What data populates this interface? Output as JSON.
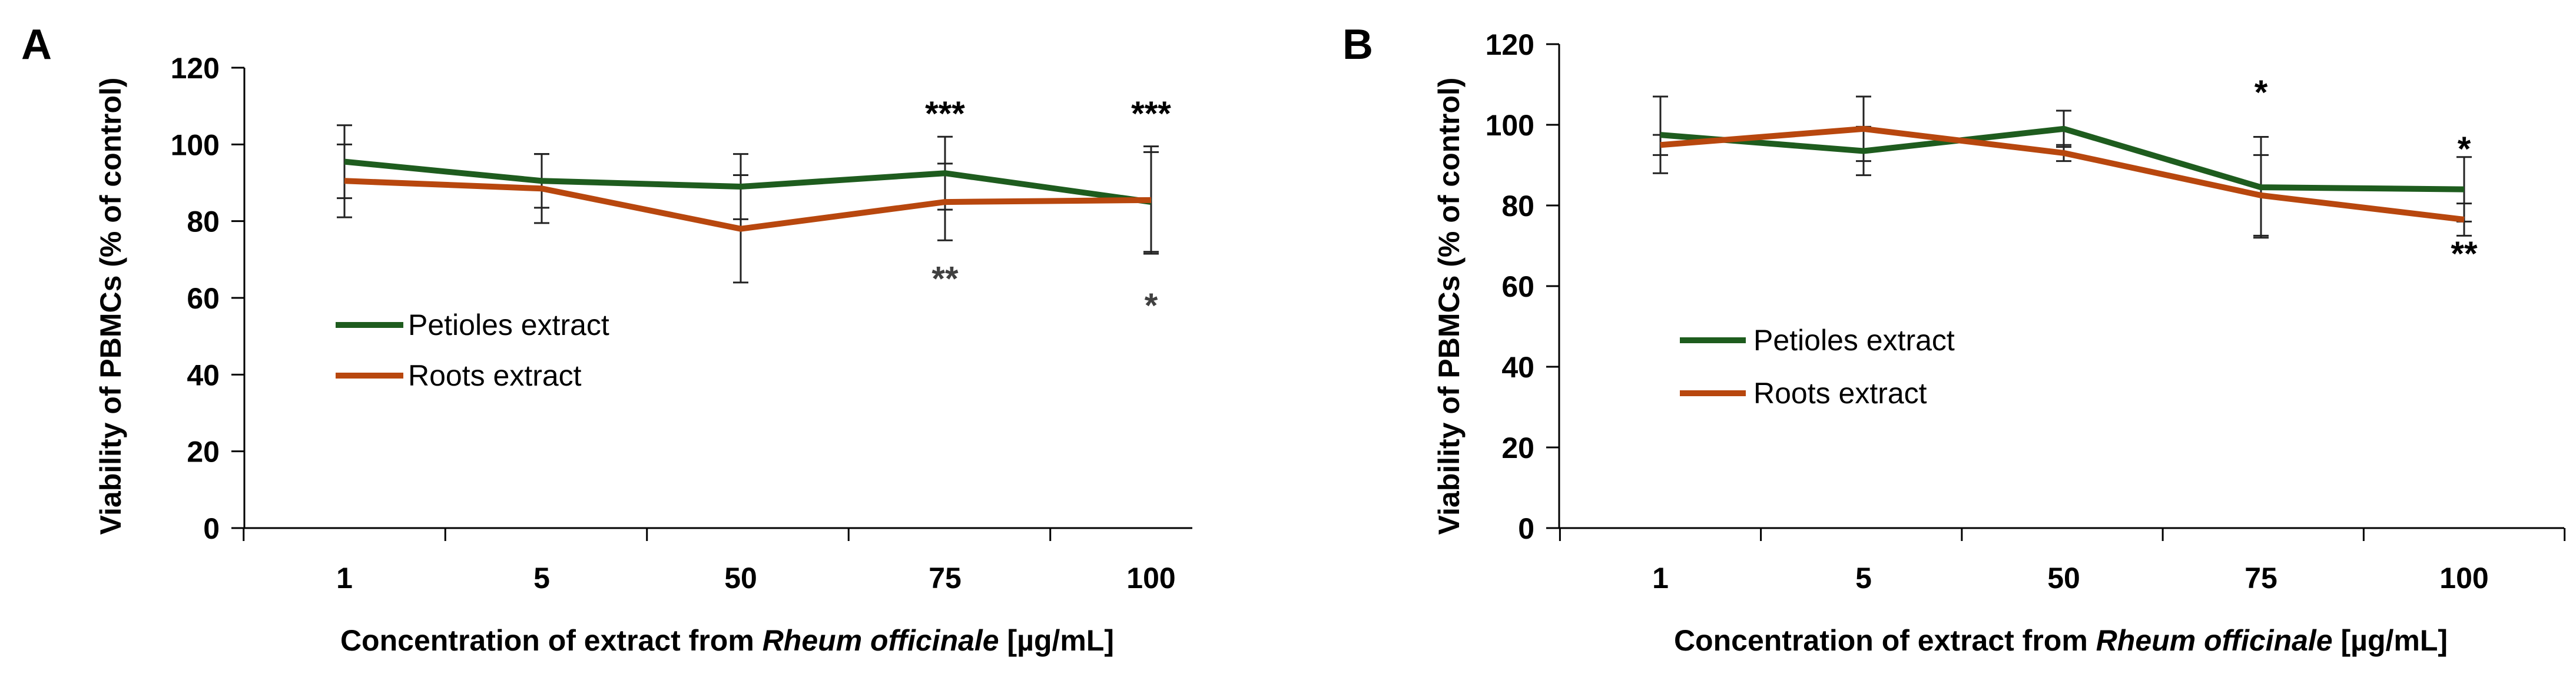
{
  "chart_data": [
    {
      "type": "line",
      "panel": "A",
      "categories": [
        "1",
        "5",
        "50",
        "75",
        "100"
      ],
      "series": [
        {
          "name": "Petioles extract",
          "color": "#1e5c1e",
          "values": [
            95.5,
            90.5,
            89,
            92.5,
            85
          ],
          "errors": [
            9.5,
            7,
            8.5,
            9.5,
            13
          ]
        },
        {
          "name": "Roots extract",
          "color": "#b8470e",
          "values": [
            90.5,
            88.5,
            78,
            85,
            85.5
          ],
          "errors": [
            9.5,
            9,
            14,
            10,
            14
          ]
        }
      ],
      "annotations": [
        {
          "text": "***",
          "category": "75",
          "value": 108,
          "color": "#000000"
        },
        {
          "text": "**",
          "category": "75",
          "value": 65,
          "color": "#404040"
        },
        {
          "text": "***",
          "category": "100",
          "value": 108,
          "color": "#000000"
        },
        {
          "text": "*",
          "category": "100",
          "value": 58,
          "color": "#404040"
        }
      ],
      "ylabel": "Viability of PBMCs (% of control)",
      "xlabel_parts": [
        "Concentration of extract from ",
        "Rheum officinale",
        " [µg/mL]"
      ],
      "ylim": [
        0,
        120
      ],
      "yticks": [
        "0",
        "20",
        "40",
        "60",
        "80",
        "100",
        "120"
      ],
      "legend_position": "middle-left"
    },
    {
      "type": "line",
      "panel": "B",
      "categories": [
        "1",
        "5",
        "50",
        "75",
        "100"
      ],
      "series": [
        {
          "name": "Petioles extract",
          "color": "#1e5c1e",
          "values": [
            97.5,
            93.5,
            99,
            84.5,
            84
          ],
          "errors": [
            9.5,
            6,
            4.5,
            12.5,
            8
          ]
        },
        {
          "name": "Roots extract",
          "color": "#b8470e",
          "values": [
            95,
            99,
            93,
            82.5,
            76.5
          ],
          "errors": [
            2.5,
            8,
            2,
            10,
            4
          ]
        }
      ],
      "annotations": [
        {
          "text": "*",
          "category": "75",
          "value": 108,
          "color": "#000000"
        },
        {
          "text": "*",
          "category": "100",
          "value": 94,
          "color": "#000000"
        },
        {
          "text": "**",
          "category": "100",
          "value": 68,
          "color": "#000000"
        }
      ],
      "ylabel": "Viability of PBMCs (% of control)",
      "xlabel_parts": [
        "Concentration of extract from ",
        "Rheum officinale",
        " [µg/mL]"
      ],
      "ylim": [
        0,
        120
      ],
      "yticks": [
        "0",
        "20",
        "40",
        "60",
        "80",
        "100",
        "120"
      ],
      "legend_position": "middle-left"
    }
  ]
}
